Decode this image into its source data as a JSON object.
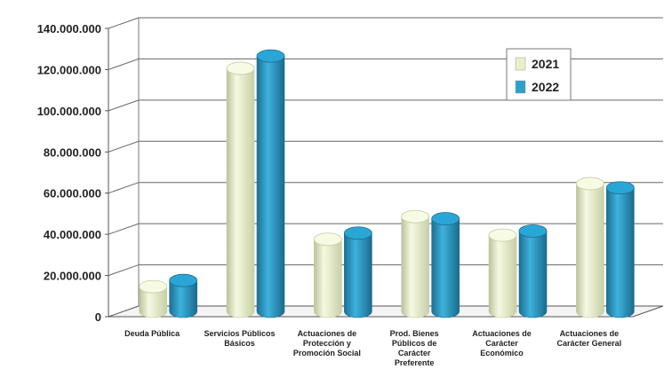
{
  "chart_data": {
    "type": "bar",
    "categories": [
      [
        "Deuda Pública"
      ],
      [
        "Servicios Públicos",
        "Básicos"
      ],
      [
        "Actuaciones de",
        "Protección y",
        "Promoción Social"
      ],
      [
        "Prod. Bienes",
        "Públicos de",
        "Carácter",
        "Preferente"
      ],
      [
        "Actuaciones de",
        "Carácter",
        "Económico"
      ],
      [
        "Actuaciones de",
        "Carácter General"
      ]
    ],
    "series": [
      {
        "name": "2021",
        "color": "#e9efc9",
        "values": [
          12000000,
          118000000,
          35000000,
          46000000,
          37000000,
          62000000
        ]
      },
      {
        "name": "2022",
        "color": "#2d9fcc",
        "values": [
          15000000,
          124000000,
          38000000,
          45000000,
          39000000,
          60000000
        ]
      }
    ],
    "ylim": [
      0,
      140000000
    ],
    "yticks": [
      "0",
      "20.000.000",
      "40.000.000",
      "60.000.000",
      "80.000.000",
      "100.000.000",
      "120.000.000",
      "140.000.000"
    ],
    "grid": true,
    "legend_position": "top-right"
  }
}
